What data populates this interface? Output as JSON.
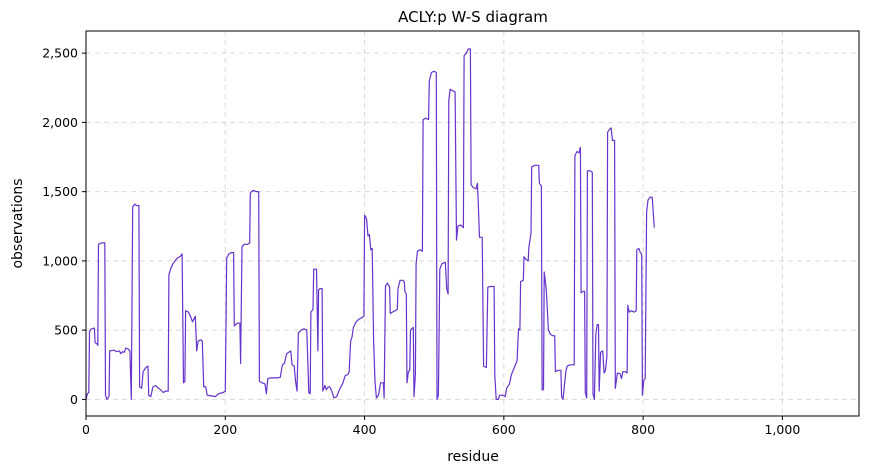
{
  "chart_data": {
    "type": "line",
    "title": "ACLY:p W-S diagram",
    "xlabel": "residue",
    "ylabel": "observations",
    "xlim": [
      0,
      1110
    ],
    "ylim": [
      -120,
      2660
    ],
    "xticks": [
      0,
      200,
      400,
      600,
      800,
      1000
    ],
    "xtick_labels": [
      "0",
      "200",
      "400",
      "600",
      "800",
      "1,000"
    ],
    "yticks": [
      0,
      500,
      1000,
      1500,
      2000,
      2500
    ],
    "ytick_labels": [
      "0",
      "500",
      "1,000",
      "1,500",
      "2,000",
      "2,500"
    ],
    "grid": true,
    "line_color": "#6633cc",
    "series": [
      {
        "points": [
          [
            0,
            0
          ],
          [
            2,
            40
          ],
          [
            4,
            50
          ],
          [
            5,
            490
          ],
          [
            8,
            510
          ],
          [
            12,
            515
          ],
          [
            13,
            410
          ],
          [
            16,
            400
          ],
          [
            17,
            390
          ],
          [
            18,
            1120
          ],
          [
            22,
            1130
          ],
          [
            27,
            1130
          ],
          [
            28,
            30
          ],
          [
            30,
            0
          ],
          [
            33,
            20
          ],
          [
            34,
            350
          ],
          [
            40,
            355
          ],
          [
            44,
            345
          ],
          [
            48,
            350
          ],
          [
            50,
            330
          ],
          [
            53,
            345
          ],
          [
            55,
            340
          ],
          [
            57,
            370
          ],
          [
            60,
            365
          ],
          [
            63,
            350
          ],
          [
            65,
            0
          ],
          [
            67,
            1390
          ],
          [
            70,
            1410
          ],
          [
            72,
            1400
          ],
          [
            76,
            1400
          ],
          [
            77,
            90
          ],
          [
            80,
            80
          ],
          [
            82,
            200
          ],
          [
            86,
            230
          ],
          [
            89,
            240
          ],
          [
            90,
            30
          ],
          [
            93,
            20
          ],
          [
            96,
            90
          ],
          [
            100,
            100
          ],
          [
            103,
            85
          ],
          [
            107,
            70
          ],
          [
            111,
            50
          ],
          [
            114,
            60
          ],
          [
            118,
            60
          ],
          [
            119,
            900
          ],
          [
            122,
            950
          ],
          [
            125,
            980
          ],
          [
            128,
            1000
          ],
          [
            131,
            1020
          ],
          [
            135,
            1030
          ],
          [
            138,
            1050
          ],
          [
            140,
            120
          ],
          [
            142,
            130
          ],
          [
            143,
            640
          ],
          [
            147,
            630
          ],
          [
            150,
            600
          ],
          [
            153,
            560
          ],
          [
            157,
            600
          ],
          [
            159,
            350
          ],
          [
            161,
            420
          ],
          [
            165,
            430
          ],
          [
            167,
            420
          ],
          [
            169,
            90
          ],
          [
            172,
            90
          ],
          [
            174,
            30
          ],
          [
            180,
            25
          ],
          [
            186,
            20
          ],
          [
            190,
            40
          ],
          [
            197,
            50
          ],
          [
            200,
            60
          ],
          [
            202,
            1020
          ],
          [
            205,
            1050
          ],
          [
            208,
            1060
          ],
          [
            212,
            1060
          ],
          [
            213,
            530
          ],
          [
            217,
            550
          ],
          [
            221,
            550
          ],
          [
            222,
            260
          ],
          [
            224,
            1100
          ],
          [
            227,
            1120
          ],
          [
            232,
            1120
          ],
          [
            235,
            1130
          ],
          [
            236,
            1490
          ],
          [
            240,
            1510
          ],
          [
            244,
            1500
          ],
          [
            248,
            1500
          ],
          [
            249,
            130
          ],
          [
            253,
            120
          ],
          [
            257,
            110
          ],
          [
            259,
            40
          ],
          [
            261,
            150
          ],
          [
            265,
            155
          ],
          [
            270,
            155
          ],
          [
            275,
            155
          ],
          [
            279,
            160
          ],
          [
            282,
            250
          ],
          [
            285,
            260
          ],
          [
            288,
            330
          ],
          [
            291,
            340
          ],
          [
            294,
            350
          ],
          [
            296,
            250
          ],
          [
            299,
            240
          ],
          [
            301,
            130
          ],
          [
            303,
            60
          ],
          [
            305,
            480
          ],
          [
            309,
            500
          ],
          [
            313,
            510
          ],
          [
            317,
            500
          ],
          [
            320,
            50
          ],
          [
            322,
            40
          ],
          [
            323,
            630
          ],
          [
            326,
            650
          ],
          [
            327,
            940
          ],
          [
            331,
            940
          ],
          [
            333,
            350
          ],
          [
            334,
            790
          ],
          [
            336,
            800
          ],
          [
            339,
            800
          ],
          [
            340,
            60
          ],
          [
            343,
            100
          ],
          [
            345,
            70
          ],
          [
            348,
            90
          ],
          [
            350,
            90
          ],
          [
            353,
            60
          ],
          [
            356,
            10
          ],
          [
            360,
            20
          ],
          [
            363,
            60
          ],
          [
            366,
            90
          ],
          [
            369,
            120
          ],
          [
            372,
            170
          ],
          [
            376,
            180
          ],
          [
            378,
            200
          ],
          [
            380,
            420
          ],
          [
            382,
            450
          ],
          [
            384,
            520
          ],
          [
            388,
            560
          ],
          [
            392,
            580
          ],
          [
            396,
            590
          ],
          [
            399,
            600
          ],
          [
            400,
            1330
          ],
          [
            403,
            1300
          ],
          [
            405,
            1180
          ],
          [
            407,
            1190
          ],
          [
            409,
            1080
          ],
          [
            411,
            1090
          ],
          [
            413,
            420
          ],
          [
            415,
            130
          ],
          [
            417,
            10
          ],
          [
            420,
            30
          ],
          [
            423,
            120
          ],
          [
            427,
            120
          ],
          [
            428,
            10
          ],
          [
            430,
            820
          ],
          [
            433,
            840
          ],
          [
            436,
            810
          ],
          [
            437,
            620
          ],
          [
            440,
            630
          ],
          [
            444,
            640
          ],
          [
            447,
            650
          ],
          [
            448,
            800
          ],
          [
            451,
            860
          ],
          [
            455,
            860
          ],
          [
            457,
            850
          ],
          [
            458,
            780
          ],
          [
            460,
            760
          ],
          [
            461,
            120
          ],
          [
            463,
            200
          ],
          [
            465,
            210
          ],
          [
            466,
            500
          ],
          [
            470,
            520
          ],
          [
            471,
            20
          ],
          [
            473,
            180
          ],
          [
            474,
            980
          ],
          [
            476,
            1070
          ],
          [
            479,
            1080
          ],
          [
            483,
            1070
          ],
          [
            484,
            2020
          ],
          [
            488,
            2030
          ],
          [
            492,
            2020
          ],
          [
            493,
            2300
          ],
          [
            496,
            2360
          ],
          [
            500,
            2370
          ],
          [
            503,
            2360
          ],
          [
            504,
            0
          ],
          [
            506,
            30
          ],
          [
            508,
            940
          ],
          [
            511,
            980
          ],
          [
            516,
            990
          ],
          [
            518,
            800
          ],
          [
            520,
            760
          ],
          [
            521,
            2160
          ],
          [
            523,
            2240
          ],
          [
            526,
            2230
          ],
          [
            530,
            2220
          ],
          [
            532,
            1150
          ],
          [
            534,
            1250
          ],
          [
            538,
            1260
          ],
          [
            542,
            1240
          ],
          [
            543,
            2480
          ],
          [
            546,
            2500
          ],
          [
            549,
            2530
          ],
          [
            552,
            2530
          ],
          [
            553,
            1550
          ],
          [
            556,
            1530
          ],
          [
            560,
            1520
          ],
          [
            562,
            1560
          ],
          [
            563,
            1450
          ],
          [
            565,
            1170
          ],
          [
            569,
            1170
          ],
          [
            571,
            240
          ],
          [
            575,
            230
          ],
          [
            577,
            810
          ],
          [
            581,
            815
          ],
          [
            586,
            815
          ],
          [
            587,
            180
          ],
          [
            589,
            0
          ],
          [
            592,
            0
          ],
          [
            594,
            30
          ],
          [
            598,
            30
          ],
          [
            602,
            20
          ],
          [
            604,
            80
          ],
          [
            608,
            110
          ],
          [
            611,
            180
          ],
          [
            615,
            230
          ],
          [
            619,
            280
          ],
          [
            621,
            510
          ],
          [
            623,
            500
          ],
          [
            624,
            850
          ],
          [
            628,
            860
          ],
          [
            629,
            1030
          ],
          [
            632,
            1010
          ],
          [
            635,
            1000
          ],
          [
            636,
            1100
          ],
          [
            639,
            1200
          ],
          [
            640,
            1680
          ],
          [
            645,
            1690
          ],
          [
            650,
            1690
          ],
          [
            651,
            1560
          ],
          [
            654,
            1540
          ],
          [
            655,
            70
          ],
          [
            657,
            70
          ],
          [
            658,
            920
          ],
          [
            661,
            790
          ],
          [
            664,
            500
          ],
          [
            667,
            470
          ],
          [
            670,
            460
          ],
          [
            673,
            460
          ],
          [
            674,
            200
          ],
          [
            678,
            210
          ],
          [
            682,
            210
          ],
          [
            683,
            20
          ],
          [
            685,
            0
          ],
          [
            687,
            100
          ],
          [
            689,
            200
          ],
          [
            691,
            240
          ],
          [
            695,
            250
          ],
          [
            699,
            250
          ],
          [
            701,
            250
          ],
          [
            702,
            1760
          ],
          [
            705,
            1790
          ],
          [
            708,
            1780
          ],
          [
            710,
            1820
          ],
          [
            711,
            770
          ],
          [
            714,
            780
          ],
          [
            716,
            780
          ],
          [
            717,
            50
          ],
          [
            719,
            10
          ],
          [
            720,
            1650
          ],
          [
            724,
            1650
          ],
          [
            727,
            1640
          ],
          [
            728,
            40
          ],
          [
            730,
            0
          ],
          [
            732,
            470
          ],
          [
            734,
            540
          ],
          [
            736,
            540
          ],
          [
            737,
            60
          ],
          [
            739,
            340
          ],
          [
            742,
            350
          ],
          [
            744,
            190
          ],
          [
            746,
            210
          ],
          [
            748,
            310
          ],
          [
            749,
            1930
          ],
          [
            752,
            1950
          ],
          [
            754,
            1960
          ],
          [
            756,
            1870
          ],
          [
            759,
            1870
          ],
          [
            760,
            80
          ],
          [
            763,
            190
          ],
          [
            767,
            185
          ],
          [
            769,
            150
          ],
          [
            771,
            200
          ],
          [
            775,
            200
          ],
          [
            777,
            190
          ],
          [
            778,
            680
          ],
          [
            780,
            630
          ],
          [
            783,
            640
          ],
          [
            787,
            630
          ],
          [
            790,
            640
          ],
          [
            791,
            1080
          ],
          [
            794,
            1090
          ],
          [
            796,
            1060
          ],
          [
            798,
            1050
          ],
          [
            799,
            30
          ],
          [
            801,
            140
          ],
          [
            803,
            150
          ],
          [
            805,
            1350
          ],
          [
            807,
            1440
          ],
          [
            810,
            1460
          ],
          [
            813,
            1460
          ],
          [
            816,
            1240
          ]
        ]
      }
    ]
  }
}
